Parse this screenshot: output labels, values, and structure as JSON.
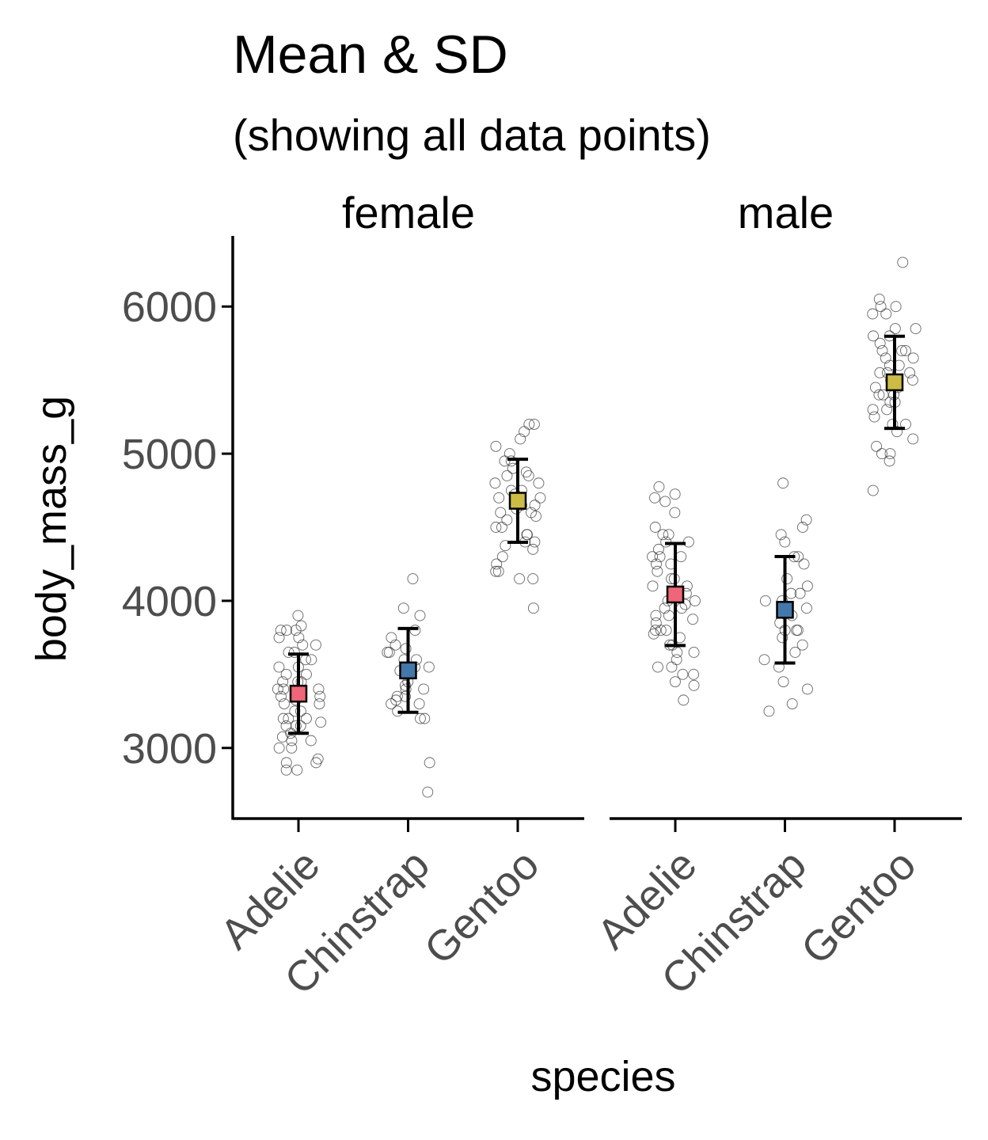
{
  "chart_data": {
    "type": "scatter",
    "title": "Mean & SD",
    "subtitle": "(showing all data points)",
    "xlabel": "species",
    "ylabel": "body_mass_g",
    "ylim": [
      2520,
      6480
    ],
    "yticks": [
      3000,
      4000,
      5000,
      6000
    ],
    "ytick_labels": [
      "3000",
      "4000",
      "5000",
      "6000"
    ],
    "categories": [
      "Adelie",
      "Chinstrap",
      "Gentoo"
    ],
    "grid": false,
    "legend": "none",
    "colors": {
      "Adelie": "#ee6677",
      "Chinstrap": "#4477aa",
      "Gentoo": "#ccbb44"
    },
    "facets": [
      {
        "label": "female",
        "groups": [
          {
            "species": "Adelie",
            "mean": 3369,
            "sd": 269,
            "points": [
              3900,
              3830,
              3800,
              3800,
              3800,
              3750,
              3750,
              3700,
              3700,
              3650,
              3650,
              3600,
              3600,
              3550,
              3550,
              3500,
              3500,
              3450,
              3450,
              3450,
              3400,
              3400,
              3400,
              3350,
              3350,
              3325,
              3300,
              3300,
              3250,
              3250,
              3200,
              3200,
              3200,
              3175,
              3150,
              3150,
              3150,
              3100,
              3075,
              3050,
              3050,
              3000,
              3000,
              2925,
              2900,
              2900,
              2850,
              2850
            ]
          },
          {
            "species": "Chinstrap",
            "mean": 3527,
            "sd": 285,
            "points": [
              4150,
              3950,
              3900,
              3800,
              3750,
              3700,
              3675,
              3650,
              3650,
              3600,
              3600,
              3550,
              3550,
              3525,
              3500,
              3450,
              3425,
              3400,
              3400,
              3350,
              3350,
              3325,
              3300,
              3300,
              3250,
              3200,
              3200,
              2900,
              2700
            ]
          },
          {
            "species": "Gentoo",
            "mean": 4680,
            "sd": 282,
            "points": [
              5200,
              5200,
              5150,
              5100,
              5050,
              5000,
              4950,
              4950,
              4900,
              4875,
              4850,
              4850,
              4800,
              4800,
              4750,
              4750,
              4725,
              4700,
              4700,
              4700,
              4650,
              4650,
              4625,
              4600,
              4600,
              4575,
              4550,
              4500,
              4500,
              4450,
              4450,
              4400,
              4400,
              4375,
              4350,
              4300,
              4250,
              4200,
              4200,
              4150,
              4150,
              3950
            ]
          }
        ]
      },
      {
        "label": "male",
        "groups": [
          {
            "species": "Adelie",
            "mean": 4043,
            "sd": 347,
            "points": [
              4775,
              4725,
              4700,
              4675,
              4600,
              4500,
              4450,
              4450,
              4400,
              4400,
              4350,
              4300,
              4300,
              4300,
              4250,
              4250,
              4200,
              4150,
              4150,
              4100,
              4100,
              4050,
              4050,
              4000,
              4000,
              3975,
              3950,
              3950,
              3900,
              3900,
              3875,
              3850,
              3800,
              3800,
              3800,
              3775,
              3750,
              3700,
              3700,
              3650,
              3650,
              3600,
              3550,
              3550,
              3500,
              3500,
              3450,
              3425,
              3325
            ]
          },
          {
            "species": "Chinstrap",
            "mean": 3939,
            "sd": 362,
            "points": [
              4800,
              4550,
              4500,
              4450,
              4400,
              4300,
              4300,
              4250,
              4150,
              4100,
              4050,
              4050,
              4000,
              4000,
              3950,
              3950,
              3900,
              3850,
              3800,
              3800,
              3800,
              3750,
              3700,
              3650,
              3600,
              3550,
              3450,
              3400,
              3300,
              3250
            ]
          },
          {
            "species": "Gentoo",
            "mean": 5485,
            "sd": 313,
            "points": [
              6300,
              6050,
              6000,
              6000,
              5950,
              5950,
              5850,
              5850,
              5800,
              5800,
              5750,
              5700,
              5700,
              5700,
              5650,
              5650,
              5600,
              5600,
              5550,
              5550,
              5550,
              5500,
              5500,
              5450,
              5450,
              5400,
              5400,
              5400,
              5350,
              5350,
              5300,
              5300,
              5250,
              5200,
              5200,
              5150,
              5100,
              5050,
              5000,
              5000,
              4950,
              4750
            ]
          }
        ]
      }
    ]
  }
}
